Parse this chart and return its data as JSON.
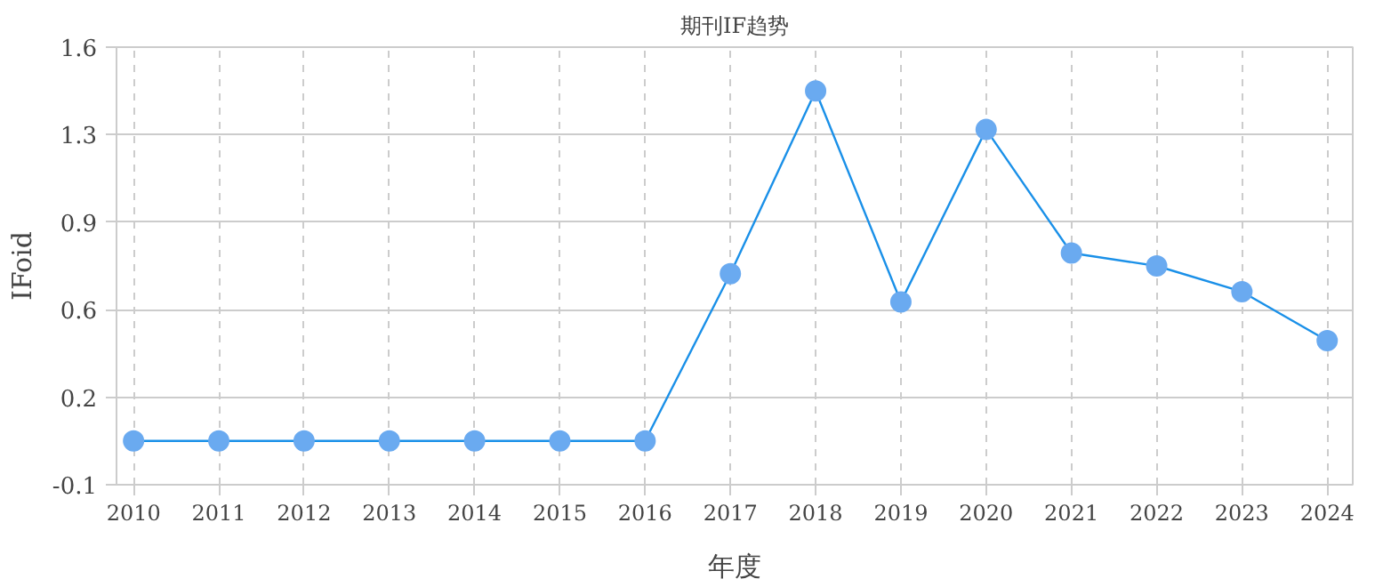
{
  "chart_data": {
    "type": "line",
    "title": "期刊IF趋势",
    "xlabel": "年度",
    "ylabel": "IFoid",
    "x": [
      2010,
      2011,
      2012,
      2013,
      2014,
      2015,
      2016,
      2017,
      2018,
      2019,
      2020,
      2021,
      2022,
      2023,
      2024
    ],
    "series": [
      {
        "color": "#1a90e8",
        "values": [
          0.07,
          0.07,
          0.07,
          0.07,
          0.07,
          0.07,
          0.07,
          0.72,
          1.43,
          0.61,
          1.28,
          0.8,
          0.75,
          0.65,
          0.46
        ]
      }
    ],
    "xlim": [
      2009.8,
      2024.3
    ],
    "xticks": [
      2010,
      2011,
      2012,
      2013,
      2014,
      2015,
      2016,
      2017,
      2018,
      2019,
      2020,
      2021,
      2022,
      2023,
      2024
    ],
    "ylim": [
      -0.1,
      1.6
    ],
    "yticks": [
      -0.1,
      {
        "value": 0.24,
        "label": "0.2"
      },
      {
        "value": 0.58,
        "label": "0.6"
      },
      {
        "value": 0.92,
        "label": "0.9"
      },
      {
        "value": 1.26,
        "label": "1.3"
      },
      1.6
    ],
    "grid": true,
    "marker": "circle",
    "line_style": "solid"
  }
}
